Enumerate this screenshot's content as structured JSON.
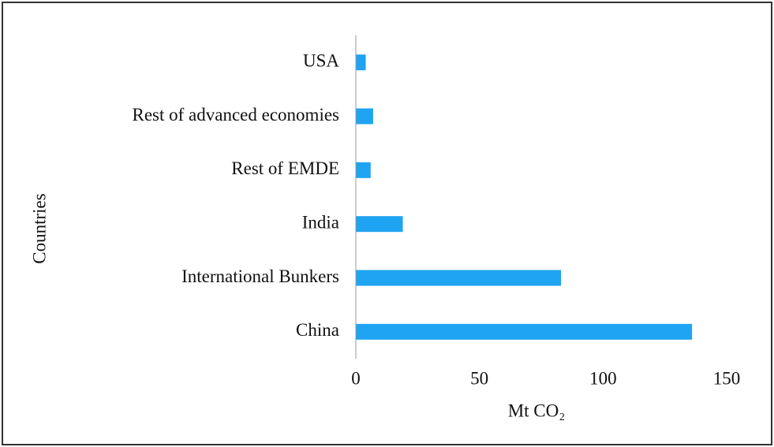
{
  "chart_data": {
    "type": "barh",
    "categories": [
      "China",
      "International Bunkers",
      "India",
      "Rest of EMDE",
      "Rest of advanced economies",
      "USA"
    ],
    "values": [
      136,
      83,
      19,
      6,
      7,
      4
    ],
    "color": "#1ea4f2",
    "x_label": "Mt CO₂",
    "y_label": "Countries",
    "xlim": [
      0,
      150
    ],
    "xticks": [
      0,
      50,
      100,
      150
    ]
  }
}
